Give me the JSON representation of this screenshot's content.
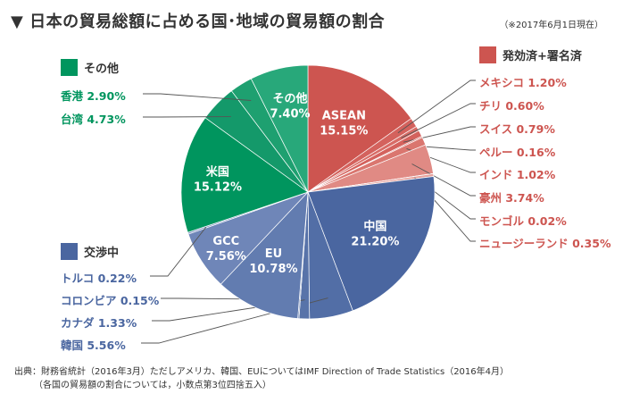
{
  "title": "▼ 日本の貿易総額に占める国･地域の貿易額の割合",
  "as_of": "（※2017年6月1日現在）",
  "legend": {
    "red": "発効済+署名済",
    "green": "その他",
    "blue": "交渉中"
  },
  "source": [
    "出典：財務省統計（2016年3月）ただしアメリカ、韓国、EUについてはIMF Direction of Trade Statistics（2016年4月）",
    "（各国の貿易額の割合については，小数点第3位四捨五入）"
  ],
  "colors": {
    "red": "#cd5550",
    "green": "#00955e",
    "blue": "#4a66a0"
  },
  "chart_data": {
    "type": "pie",
    "title": "日本の貿易総額に占める国･地域の貿易額の割合",
    "unit": "%",
    "slices": [
      {
        "name": "ASEAN",
        "label": "ASEAN 15.15%",
        "value": 15.15,
        "group": "red",
        "color": "#cd5550",
        "inside": [
          "ASEAN",
          "15.15%"
        ]
      },
      {
        "name": "メキシコ",
        "label": "メキシコ 1.20%",
        "value": 1.2,
        "group": "red",
        "color": "#d4625d"
      },
      {
        "name": "チリ",
        "label": "チリ 0.60%",
        "value": 0.6,
        "group": "red",
        "color": "#d86c66"
      },
      {
        "name": "スイス",
        "label": "スイス 0.79%",
        "value": 0.79,
        "group": "red",
        "color": "#d4625d"
      },
      {
        "name": "ペルー",
        "label": "ペルー 0.16%",
        "value": 0.16,
        "group": "red",
        "color": "#d86c66"
      },
      {
        "name": "インド",
        "label": "インド 1.02%",
        "value": 1.02,
        "group": "red",
        "color": "#da766f"
      },
      {
        "name": "豪州",
        "label": "豪州 3.74%",
        "value": 3.74,
        "group": "red",
        "color": "#e08a84"
      },
      {
        "name": "モンゴル",
        "label": "モンゴル 0.02%",
        "value": 0.02,
        "group": "red",
        "color": "#e39893"
      },
      {
        "name": "ニュージーランド",
        "label": "ニュージーランド 0.35%",
        "value": 0.35,
        "group": "red",
        "color": "#e6a29d"
      },
      {
        "name": "中国",
        "label": "中国 21.20%",
        "value": 21.2,
        "group": "blue",
        "color": "#4a66a0",
        "inside": [
          "中国",
          "21.20%"
        ]
      },
      {
        "name": "韓国",
        "label": "韓国 5.56%",
        "value": 5.56,
        "group": "blue",
        "color": "#526ea6"
      },
      {
        "name": "カナダ",
        "label": "カナダ 1.33%",
        "value": 1.33,
        "group": "blue",
        "color": "#5873a9"
      },
      {
        "name": "コロンビア",
        "label": "コロンビア 0.15%",
        "value": 0.15,
        "group": "blue",
        "color": "#5c77ac"
      },
      {
        "name": "EU",
        "label": "EU 10.78%",
        "value": 10.78,
        "group": "blue",
        "color": "#627cb0",
        "inside": [
          "EU",
          "10.78%"
        ]
      },
      {
        "name": "GCC",
        "label": "GCC 7.56%",
        "value": 7.56,
        "group": "blue",
        "color": "#6f86b8",
        "inside": [
          "GCC",
          "7.56%"
        ]
      },
      {
        "name": "トルコ",
        "label": "トルコ 0.22%",
        "value": 0.22,
        "group": "blue",
        "color": "#8a9cc6"
      },
      {
        "name": "米国",
        "label": "米国 15.12%",
        "value": 15.12,
        "group": "green",
        "color": "#00955e",
        "inside": [
          "米国",
          "15.12%"
        ]
      },
      {
        "name": "台湾",
        "label": "台湾 4.73%",
        "value": 4.73,
        "group": "green",
        "color": "#14996a"
      },
      {
        "name": "香港",
        "label": "香港 2.90%",
        "value": 2.9,
        "group": "green",
        "color": "#1ea070"
      },
      {
        "name": "その他",
        "label": "その他 7.40%",
        "value": 7.4,
        "group": "green",
        "color": "#28a87a",
        "inside": [
          "その他",
          "7.40%"
        ]
      }
    ]
  }
}
